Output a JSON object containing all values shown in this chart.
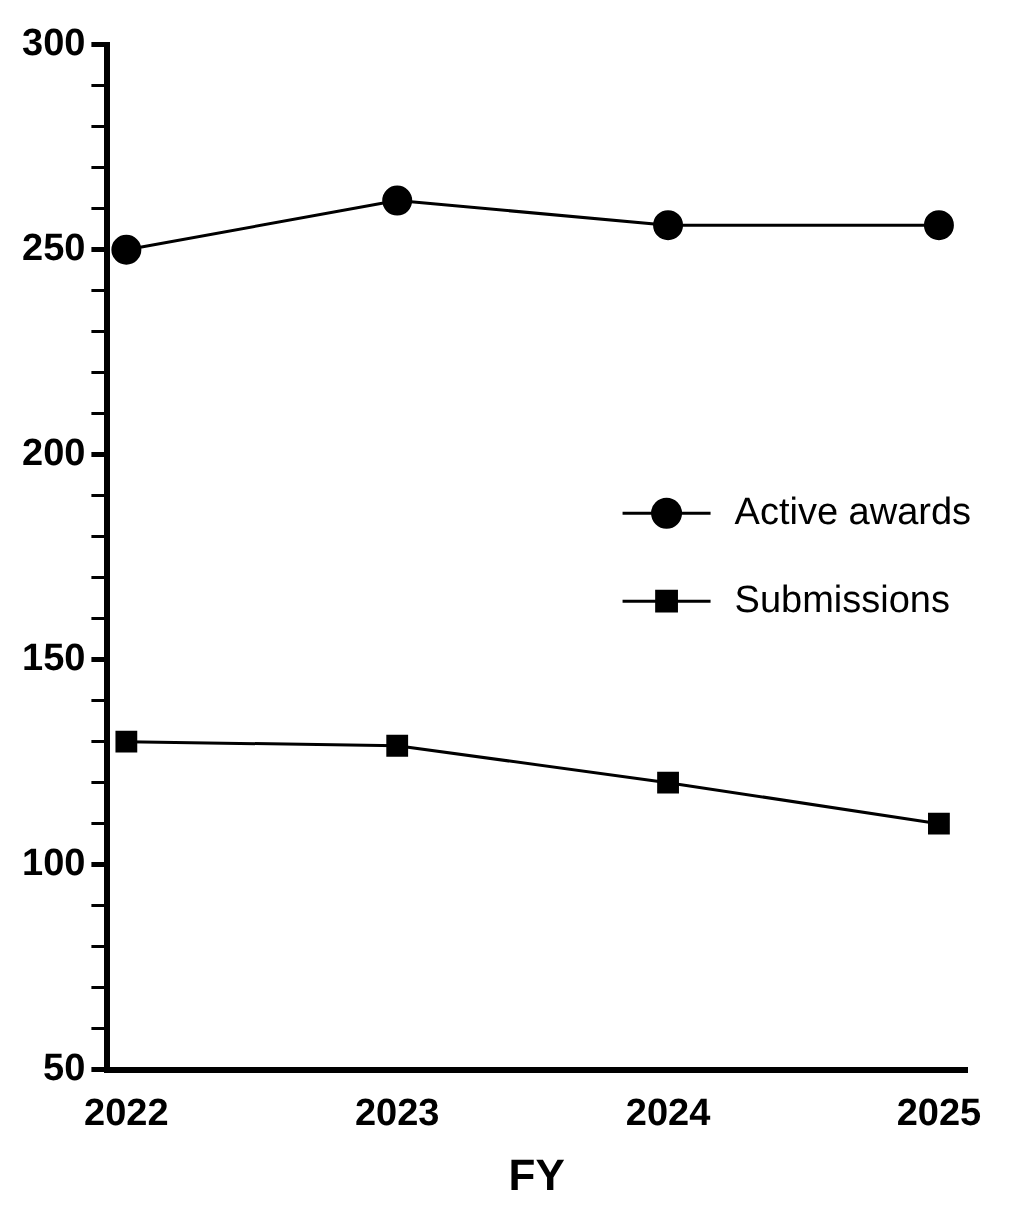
{
  "chart_data": {
    "type": "line",
    "xlabel": "FY",
    "x": [
      2022,
      2023,
      2024,
      2025
    ],
    "series": [
      {
        "name": "Active awards",
        "color": "#000000",
        "marker": "circle",
        "values": [
          250,
          262,
          256,
          256
        ]
      },
      {
        "name": "Submissions",
        "color": "#000000",
        "marker": "square",
        "values": [
          130,
          129,
          120,
          110
        ]
      }
    ],
    "xlim": [
      2021.93,
      2025.1
    ],
    "xticks": [
      2022,
      2023,
      2024,
      2025
    ],
    "ylim": [
      50,
      300
    ],
    "yticks": [
      50,
      {
        "value": 60,
        "label": null
      },
      {
        "value": 70,
        "label": null
      },
      {
        "value": 80,
        "label": null
      },
      {
        "value": 90,
        "label": null
      },
      100,
      {
        "value": 110,
        "label": null
      },
      {
        "value": 120,
        "label": null
      },
      {
        "value": 130,
        "label": null
      },
      {
        "value": 140,
        "label": null
      },
      150,
      {
        "value": 160,
        "label": null
      },
      {
        "value": 170,
        "label": null
      },
      {
        "value": 180,
        "label": null
      },
      {
        "value": 190,
        "label": null
      },
      200,
      {
        "value": 210,
        "label": null
      },
      {
        "value": 220,
        "label": null
      },
      {
        "value": 230,
        "label": null
      },
      {
        "value": 240,
        "label": null
      },
      250,
      {
        "value": 260,
        "label": null
      },
      {
        "value": 270,
        "label": null
      },
      {
        "value": 280,
        "label": null
      },
      {
        "value": 290,
        "label": null
      },
      300
    ],
    "grid": false,
    "legend": "right",
    "line_style": "solid"
  }
}
